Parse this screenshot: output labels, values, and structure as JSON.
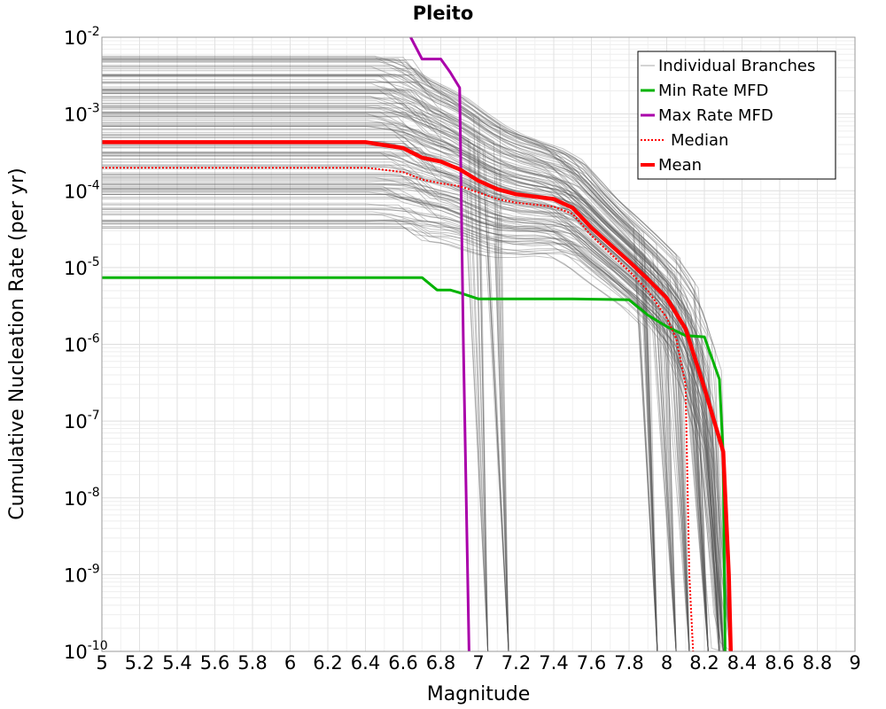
{
  "chart_data": {
    "type": "line",
    "title": "Pleito",
    "xlabel": "Magnitude",
    "ylabel": "Cumulative Nucleation Rate (per yr)",
    "xlim": [
      5,
      9
    ],
    "ylim": [
      1e-10,
      0.01
    ],
    "y_scale": "log",
    "grid": true,
    "legend_position": "top-right",
    "x_ticks": [
      "5",
      "5.2",
      "5.4",
      "5.6",
      "5.8",
      "6",
      "6.2",
      "6.4",
      "6.6",
      "6.8",
      "7",
      "7.2",
      "7.4",
      "7.6",
      "7.8",
      "8",
      "8.2",
      "8.4",
      "8.6",
      "8.8",
      "9"
    ],
    "y_ticks": [
      {
        "base": "10",
        "exp": "-2",
        "value": 0.01
      },
      {
        "base": "10",
        "exp": "-3",
        "value": 0.001
      },
      {
        "base": "10",
        "exp": "-4",
        "value": 0.0001
      },
      {
        "base": "10",
        "exp": "-5",
        "value": 1e-05
      },
      {
        "base": "10",
        "exp": "-6",
        "value": 1e-06
      },
      {
        "base": "10",
        "exp": "-7",
        "value": 1e-07
      },
      {
        "base": "10",
        "exp": "-8",
        "value": 1e-08
      },
      {
        "base": "10",
        "exp": "-9",
        "value": 1e-09
      },
      {
        "base": "10",
        "exp": "-10",
        "value": 1e-10
      }
    ],
    "colors": {
      "branches": "#555555",
      "min": "#00b300",
      "max": "#aa00aa",
      "median": "#ff0000",
      "mean": "#ff0000"
    },
    "series": [
      {
        "name": "Min Rate MFD",
        "style": "solid",
        "x": [
          5.0,
          6.7,
          6.78,
          6.85,
          6.9,
          7.0,
          7.5,
          7.8,
          7.9,
          8.0,
          8.1,
          8.2,
          8.28,
          8.3,
          8.31
        ],
        "y": [
          7.4e-06,
          7.4e-06,
          5.1e-06,
          5.1e-06,
          4.7e-06,
          3.9e-06,
          3.9e-06,
          3.8e-06,
          2.4e-06,
          1.7e-06,
          1.3e-06,
          1.25e-06,
          3.5e-07,
          3.5e-08,
          1e-10
        ]
      },
      {
        "name": "Max Rate MFD",
        "style": "solid",
        "x": [
          6.64,
          6.7,
          6.8,
          6.85,
          6.9,
          6.92,
          6.95
        ],
        "y": [
          0.01,
          0.0052,
          0.0052,
          0.0035,
          0.0022,
          1e-06,
          1e-10
        ]
      },
      {
        "name": "Median",
        "style": "dotted",
        "x": [
          5.0,
          6.4,
          6.6,
          6.7,
          6.8,
          6.9,
          7.0,
          7.1,
          7.2,
          7.4,
          7.5,
          7.6,
          7.8,
          7.9,
          8.0,
          8.05,
          8.1,
          8.12,
          8.14
        ],
        "y": [
          0.0002,
          0.0002,
          0.000175,
          0.00014,
          0.000125,
          0.000115,
          9.5e-05,
          7.8e-05,
          7e-05,
          6.2e-05,
          5e-05,
          2.6e-05,
          9e-06,
          5e-06,
          2.2e-06,
          1.2e-06,
          3e-07,
          1e-09,
          1e-10
        ]
      },
      {
        "name": "Mean",
        "style": "thick",
        "x": [
          5.0,
          6.4,
          6.6,
          6.7,
          6.8,
          6.9,
          7.0,
          7.1,
          7.2,
          7.4,
          7.5,
          7.6,
          7.8,
          7.9,
          8.0,
          8.1,
          8.2,
          8.3,
          8.33,
          8.34
        ],
        "y": [
          0.00043,
          0.00043,
          0.00036,
          0.00027,
          0.00024,
          0.00019,
          0.000135,
          0.000105,
          9e-05,
          7.8e-05,
          6e-05,
          3.3e-05,
          1.2e-05,
          7e-06,
          4e-06,
          1.6e-06,
          2.7e-07,
          4e-08,
          1e-09,
          1e-10
        ]
      }
    ],
    "legend": [
      {
        "label": "Individual Branches",
        "style": "thin-gray"
      },
      {
        "label": "Min Rate MFD",
        "style": "green"
      },
      {
        "label": "Max Rate MFD",
        "style": "purple"
      },
      {
        "label": "Median",
        "style": "red-dotted"
      },
      {
        "label": "Mean",
        "style": "red-thick"
      }
    ]
  }
}
